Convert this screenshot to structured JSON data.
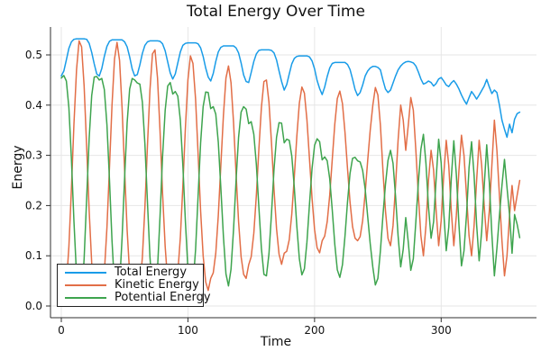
{
  "figure": {
    "background": "#ffffff",
    "axis_color": "#2f2f2f",
    "grid_color": "#e6e6e6",
    "text_color": "#111111"
  },
  "chart_data": {
    "type": "line",
    "title": "Total Energy Over Time",
    "xlabel": "Time",
    "ylabel": "Energy",
    "xlim": [
      -8,
      375
    ],
    "ylim": [
      -0.023,
      0.556
    ],
    "xticks": [
      0,
      100,
      200,
      300
    ],
    "yticks": [
      0.0,
      0.1,
      0.2,
      0.3,
      0.4,
      0.5
    ],
    "grid": true,
    "legend_position": "bottom-left",
    "x": [
      0,
      2,
      4,
      6,
      8,
      10,
      12,
      14,
      16,
      18,
      20,
      22,
      24,
      26,
      28,
      30,
      32,
      34,
      36,
      38,
      40,
      42,
      44,
      46,
      48,
      50,
      52,
      54,
      56,
      58,
      60,
      62,
      64,
      66,
      68,
      70,
      72,
      74,
      76,
      78,
      80,
      82,
      84,
      86,
      88,
      90,
      92,
      94,
      96,
      98,
      100,
      102,
      104,
      106,
      108,
      110,
      112,
      114,
      116,
      118,
      120,
      122,
      124,
      126,
      128,
      130,
      132,
      134,
      136,
      138,
      140,
      142,
      144,
      146,
      148,
      150,
      152,
      154,
      156,
      158,
      160,
      162,
      164,
      166,
      168,
      170,
      172,
      174,
      176,
      178,
      180,
      182,
      184,
      186,
      188,
      190,
      192,
      194,
      196,
      198,
      200,
      202,
      204,
      206,
      208,
      210,
      212,
      214,
      216,
      218,
      220,
      222,
      224,
      226,
      228,
      230,
      232,
      234,
      236,
      238,
      240,
      242,
      244,
      246,
      248,
      250,
      252,
      254,
      256,
      258,
      260,
      262,
      264,
      266,
      268,
      270,
      272,
      274,
      276,
      278,
      280,
      282,
      284,
      286,
      288,
      290,
      292,
      294,
      296,
      298,
      300,
      302,
      304,
      306,
      308,
      310,
      312,
      314,
      316,
      318,
      320,
      322,
      324,
      326,
      328,
      330,
      332,
      334,
      336,
      338,
      340,
      342,
      344,
      346,
      348,
      350,
      352,
      354,
      356,
      358,
      360,
      362
    ],
    "series": [
      {
        "name": "Total Energy",
        "color": "#199CE8",
        "values": [
          0.458,
          0.468,
          0.49,
          0.513,
          0.526,
          0.531,
          0.532,
          0.532,
          0.532,
          0.532,
          0.531,
          0.523,
          0.505,
          0.482,
          0.462,
          0.458,
          0.473,
          0.497,
          0.517,
          0.527,
          0.53,
          0.53,
          0.53,
          0.53,
          0.53,
          0.526,
          0.516,
          0.496,
          0.472,
          0.458,
          0.461,
          0.48,
          0.503,
          0.519,
          0.526,
          0.528,
          0.528,
          0.528,
          0.528,
          0.527,
          0.522,
          0.508,
          0.486,
          0.464,
          0.452,
          0.462,
          0.484,
          0.506,
          0.519,
          0.523,
          0.524,
          0.524,
          0.524,
          0.524,
          0.522,
          0.514,
          0.497,
          0.474,
          0.456,
          0.448,
          0.463,
          0.487,
          0.506,
          0.515,
          0.518,
          0.518,
          0.518,
          0.518,
          0.518,
          0.514,
          0.504,
          0.484,
          0.46,
          0.447,
          0.445,
          0.465,
          0.487,
          0.502,
          0.509,
          0.51,
          0.51,
          0.51,
          0.51,
          0.509,
          0.504,
          0.49,
          0.468,
          0.447,
          0.43,
          0.441,
          0.462,
          0.482,
          0.493,
          0.497,
          0.498,
          0.498,
          0.498,
          0.498,
          0.496,
          0.488,
          0.472,
          0.449,
          0.433,
          0.421,
          0.436,
          0.457,
          0.474,
          0.483,
          0.485,
          0.485,
          0.485,
          0.485,
          0.485,
          0.481,
          0.471,
          0.452,
          0.431,
          0.419,
          0.425,
          0.44,
          0.458,
          0.468,
          0.474,
          0.477,
          0.477,
          0.475,
          0.47,
          0.45,
          0.432,
          0.425,
          0.43,
          0.444,
          0.458,
          0.47,
          0.478,
          0.483,
          0.486,
          0.487,
          0.486,
          0.484,
          0.478,
          0.466,
          0.452,
          0.442,
          0.444,
          0.448,
          0.445,
          0.438,
          0.443,
          0.452,
          0.455,
          0.448,
          0.44,
          0.437,
          0.444,
          0.449,
          0.442,
          0.432,
          0.42,
          0.41,
          0.402,
          0.415,
          0.427,
          0.42,
          0.412,
          0.42,
          0.429,
          0.438,
          0.451,
          0.436,
          0.423,
          0.43,
          0.425,
          0.4,
          0.37,
          0.352,
          0.336,
          0.362,
          0.345,
          0.372,
          0.383,
          0.386
        ]
      },
      {
        "name": "Kinetic Energy",
        "color": "#E26E47",
        "values": [
          0.004,
          0.009,
          0.042,
          0.118,
          0.233,
          0.362,
          0.471,
          0.528,
          0.516,
          0.438,
          0.317,
          0.189,
          0.086,
          0.026,
          0.005,
          0.008,
          0.02,
          0.066,
          0.156,
          0.275,
          0.399,
          0.492,
          0.525,
          0.489,
          0.394,
          0.27,
          0.151,
          0.064,
          0.019,
          0.008,
          0.017,
          0.038,
          0.097,
          0.196,
          0.318,
          0.43,
          0.502,
          0.51,
          0.454,
          0.348,
          0.224,
          0.118,
          0.048,
          0.019,
          0.03,
          0.035,
          0.066,
          0.136,
          0.239,
          0.354,
          0.45,
          0.498,
          0.483,
          0.412,
          0.303,
          0.189,
          0.1,
          0.048,
          0.031,
          0.055,
          0.066,
          0.105,
          0.18,
          0.279,
          0.38,
          0.454,
          0.478,
          0.445,
          0.366,
          0.264,
          0.168,
          0.098,
          0.063,
          0.055,
          0.082,
          0.098,
          0.145,
          0.22,
          0.312,
          0.395,
          0.447,
          0.45,
          0.406,
          0.325,
          0.232,
          0.154,
          0.103,
          0.083,
          0.105,
          0.109,
          0.132,
          0.183,
          0.257,
          0.338,
          0.404,
          0.436,
          0.424,
          0.371,
          0.294,
          0.214,
          0.152,
          0.116,
          0.106,
          0.13,
          0.139,
          0.168,
          0.221,
          0.292,
          0.362,
          0.413,
          0.428,
          0.403,
          0.346,
          0.274,
          0.207,
          0.158,
          0.135,
          0.13,
          0.138,
          0.17,
          0.225,
          0.29,
          0.35,
          0.4,
          0.435,
          0.42,
          0.36,
          0.27,
          0.19,
          0.135,
          0.12,
          0.16,
          0.24,
          0.33,
          0.4,
          0.37,
          0.31,
          0.36,
          0.415,
          0.39,
          0.31,
          0.22,
          0.14,
          0.1,
          0.16,
          0.25,
          0.31,
          0.27,
          0.19,
          0.12,
          0.17,
          0.26,
          0.33,
          0.28,
          0.19,
          0.12,
          0.18,
          0.27,
          0.34,
          0.3,
          0.22,
          0.14,
          0.1,
          0.16,
          0.25,
          0.33,
          0.28,
          0.2,
          0.13,
          0.19,
          0.28,
          0.37,
          0.31,
          0.22,
          0.13,
          0.06,
          0.1,
          0.18,
          0.24,
          0.19,
          0.22,
          0.25
        ]
      },
      {
        "name": "Potential Energy",
        "color": "#3EA44E",
        "values": [
          0.454,
          0.459,
          0.448,
          0.395,
          0.293,
          0.169,
          0.061,
          0.004,
          0.016,
          0.094,
          0.214,
          0.334,
          0.419,
          0.456,
          0.457,
          0.45,
          0.453,
          0.431,
          0.361,
          0.252,
          0.131,
          0.038,
          0.005,
          0.041,
          0.136,
          0.256,
          0.365,
          0.432,
          0.453,
          0.45,
          0.444,
          0.442,
          0.406,
          0.323,
          0.208,
          0.098,
          0.026,
          0.018,
          0.074,
          0.179,
          0.298,
          0.39,
          0.438,
          0.445,
          0.422,
          0.427,
          0.418,
          0.37,
          0.28,
          0.169,
          0.074,
          0.026,
          0.041,
          0.112,
          0.219,
          0.325,
          0.397,
          0.426,
          0.425,
          0.393,
          0.397,
          0.382,
          0.326,
          0.236,
          0.138,
          0.064,
          0.04,
          0.073,
          0.152,
          0.25,
          0.336,
          0.386,
          0.397,
          0.392,
          0.363,
          0.367,
          0.342,
          0.282,
          0.197,
          0.115,
          0.063,
          0.06,
          0.104,
          0.184,
          0.272,
          0.336,
          0.365,
          0.364,
          0.325,
          0.332,
          0.33,
          0.299,
          0.236,
          0.159,
          0.094,
          0.062,
          0.074,
          0.127,
          0.202,
          0.274,
          0.32,
          0.333,
          0.327,
          0.291,
          0.297,
          0.289,
          0.253,
          0.191,
          0.123,
          0.072,
          0.057,
          0.082,
          0.139,
          0.207,
          0.264,
          0.294,
          0.296,
          0.289,
          0.287,
          0.27,
          0.233,
          0.178,
          0.124,
          0.077,
          0.042,
          0.055,
          0.11,
          0.18,
          0.242,
          0.29,
          0.31,
          0.284,
          0.218,
          0.14,
          0.078,
          0.113,
          0.176,
          0.127,
          0.071,
          0.094,
          0.168,
          0.246,
          0.312,
          0.342,
          0.284,
          0.198,
          0.135,
          0.168,
          0.253,
          0.332,
          0.285,
          0.188,
          0.11,
          0.157,
          0.254,
          0.329,
          0.262,
          0.162,
          0.08,
          0.11,
          0.182,
          0.275,
          0.327,
          0.26,
          0.162,
          0.09,
          0.149,
          0.238,
          0.321,
          0.246,
          0.143,
          0.06,
          0.115,
          0.18,
          0.24,
          0.292,
          0.236,
          0.182,
          0.105,
          0.182,
          0.163,
          0.136
        ]
      }
    ]
  }
}
